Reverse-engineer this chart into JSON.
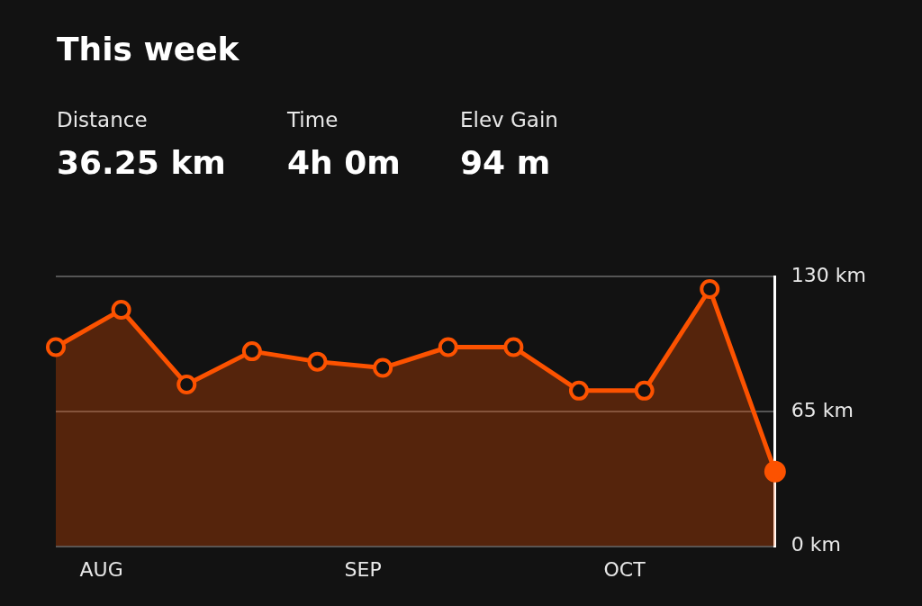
{
  "chart_data": {
    "type": "area",
    "title": "This week",
    "annotations": [
      "Distance",
      "36.25 km",
      "Time",
      "4h 0m",
      "Elev Gain",
      "94 m"
    ],
    "categories": [
      null,
      "AUG",
      null,
      null,
      null,
      "SEP",
      null,
      null,
      null,
      "OCT",
      null,
      null
    ],
    "series": [
      {
        "color": "#fc5200",
        "values": [
          96,
          114,
          78,
          94,
          89,
          86,
          96,
          96,
          75,
          75,
          124,
          36
        ]
      }
    ],
    "ylim": [
      0,
      130
    ],
    "yticks": [
      {
        "value": 0,
        "label": "0 km"
      },
      {
        "value": 65,
        "label": "65 km"
      },
      {
        "value": 130,
        "label": "130 km"
      }
    ],
    "grid": "y",
    "legend": false,
    "marker": "circle",
    "line_style": "solid"
  }
}
